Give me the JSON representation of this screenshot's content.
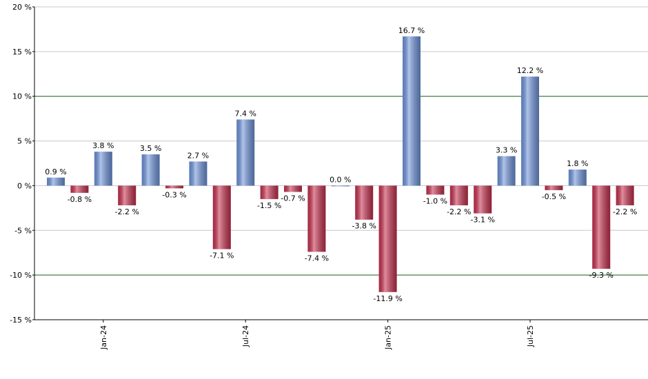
{
  "chart_data": {
    "type": "bar",
    "categories": [
      null,
      null,
      "Jan-24",
      null,
      null,
      null,
      null,
      null,
      "Jul-24",
      null,
      null,
      null,
      null,
      null,
      "Jan-25",
      null,
      null,
      null,
      null,
      null,
      "Jul-25",
      null,
      null,
      null,
      null
    ],
    "values": [
      0.9,
      -0.8,
      3.8,
      -2.2,
      3.5,
      -0.3,
      2.7,
      -7.1,
      7.4,
      -1.5,
      -0.7,
      -7.4,
      0.0,
      -3.8,
      -11.9,
      16.7,
      -1.0,
      -2.2,
      -3.1,
      3.3,
      12.2,
      -0.5,
      1.8,
      -9.3,
      -2.2
    ],
    "value_labels": [
      "0.9 %",
      "-0.8 %",
      "3.8 %",
      "-2.2 %",
      "3.5 %",
      "-0.3 %",
      "2.7 %",
      "-7.1 %",
      "7.4 %",
      "-1.5 %",
      "-0.7 %",
      "-7.4 %",
      "0.0 %",
      "-3.8 %",
      "-11.9 %",
      "16.7 %",
      "-1.0 %",
      "-2.2 %",
      "-3.1 %",
      "3.3 %",
      "12.2 %",
      "-0.5 %",
      "1.8 %",
      "-9.3 %",
      "-2.2 %"
    ],
    "color_positive": "#6f95dd",
    "color_negative": "#c8304f",
    "ylim": [
      -15,
      20
    ],
    "yticks": [
      {
        "value": -15,
        "label": "-15 %"
      },
      {
        "value": -10,
        "label": "-10 %"
      },
      {
        "value": -5,
        "label": "-5 %"
      },
      {
        "value": 0,
        "label": "0 %"
      },
      {
        "value": 5,
        "label": "5 %"
      },
      {
        "value": 10,
        "label": "10 %"
      },
      {
        "value": 15,
        "label": "15 %"
      },
      {
        "value": 20,
        "label": "20 %"
      }
    ],
    "reference_lines": [
      -10,
      10
    ],
    "grid": true
  }
}
